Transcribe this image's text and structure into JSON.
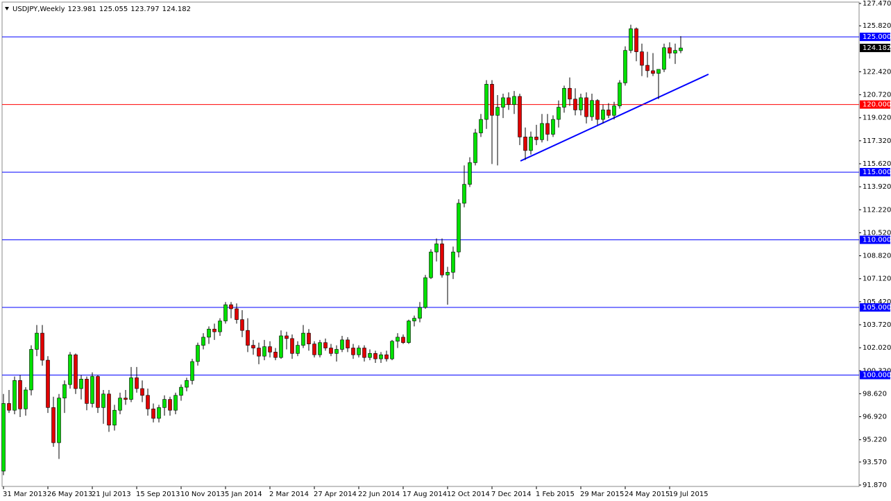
{
  "chart_data": {
    "type": "candlestick",
    "symbol": "USDJPY,Weekly",
    "ylim": [
      91.87,
      127.47
    ],
    "yticks": [
      {
        "value": 127.47,
        "label": "127.470"
      },
      {
        "value": 125.82,
        "label": "125.820"
      },
      {
        "value": 122.42,
        "label": "122.420"
      },
      {
        "value": 120.72,
        "label": "120.720"
      },
      {
        "value": 119.02,
        "label": "119.020"
      },
      {
        "value": 117.32,
        "label": "117.320"
      },
      {
        "value": 115.62,
        "label": "115.620"
      },
      {
        "value": 113.92,
        "label": "113.920"
      },
      {
        "value": 112.22,
        "label": "112.220"
      },
      {
        "value": 110.52,
        "label": "110.520"
      },
      {
        "value": 108.82,
        "label": "108.820"
      },
      {
        "value": 107.12,
        "label": "107.120"
      },
      {
        "value": 105.42,
        "label": "105.420"
      },
      {
        "value": 103.72,
        "label": "103.720"
      },
      {
        "value": 102.02,
        "label": "102.020"
      },
      {
        "value": 100.32,
        "label": "100.320"
      },
      {
        "value": 98.62,
        "label": "98.620"
      },
      {
        "value": 96.92,
        "label": "96.920"
      },
      {
        "value": 95.22,
        "label": "95.220"
      },
      {
        "value": 93.57,
        "label": "93.570"
      },
      {
        "value": 91.87,
        "label": "91.870"
      }
    ],
    "levels": [
      {
        "value": 125,
        "label": "125.000",
        "color": "#0000ff"
      },
      {
        "value": 120,
        "label": "120.000",
        "color": "#ff0000"
      },
      {
        "value": 115,
        "label": "115.000",
        "color": "#0000ff"
      },
      {
        "value": 110,
        "label": "110.000",
        "color": "#0000ff"
      },
      {
        "value": 105,
        "label": "105.000",
        "color": "#0000ff"
      },
      {
        "value": 100,
        "label": "100.000",
        "color": "#0000ff"
      }
    ],
    "up_color": "#00e000",
    "down_color": "#e00000",
    "wick_color": "#000000",
    "categories": [
      "31 Mar 2013",
      null,
      null,
      null,
      null,
      null,
      null,
      null,
      "26 May 2013",
      null,
      null,
      null,
      null,
      null,
      null,
      null,
      "21 Jul 2013",
      null,
      null,
      null,
      null,
      null,
      null,
      null,
      "15 Sep 2013",
      null,
      null,
      null,
      null,
      null,
      null,
      null,
      "10 Nov 2013",
      null,
      null,
      null,
      null,
      null,
      null,
      null,
      "5 Jan 2014",
      null,
      null,
      null,
      null,
      null,
      null,
      null,
      "2 Mar 2014",
      null,
      null,
      null,
      null,
      null,
      null,
      null,
      "27 Apr 2014",
      null,
      null,
      null,
      null,
      null,
      null,
      null,
      "22 Jun 2014",
      null,
      null,
      null,
      null,
      null,
      null,
      null,
      "17 Aug 2014",
      null,
      null,
      null,
      null,
      null,
      null,
      null,
      "12 Oct 2014",
      null,
      null,
      null,
      null,
      null,
      null,
      null,
      "7 Dec 2014",
      null,
      null,
      null,
      null,
      null,
      null,
      null,
      "1 Feb 2015",
      null,
      null,
      null,
      null,
      null,
      null,
      null,
      "29 Mar 2015",
      null,
      null,
      null,
      null,
      null,
      null,
      null,
      "24 May 2015",
      null,
      null,
      null,
      null,
      null,
      null,
      null,
      "19 Jul 2015",
      null,
      null
    ],
    "open": [
      92.9,
      97.9,
      97.4,
      99.6,
      97.5,
      98.9,
      101.9,
      103.1,
      101.1,
      97.6,
      95.0,
      98.3,
      99.3,
      101.5,
      99.0,
      99.7,
      97.9,
      99.9,
      97.6,
      98.6,
      96.3,
      97.4,
      98.3,
      98.2,
      99.8,
      99.0,
      98.5,
      97.5,
      96.8,
      97.6,
      98.2,
      97.4,
      98.5,
      99.1,
      99.6,
      101.0,
      102.2,
      102.8,
      103.4,
      103.2,
      104.0,
      105.2,
      104.9,
      104.1,
      103.3,
      102.2,
      102.0,
      101.4,
      102.1,
      101.7,
      101.3,
      102.9,
      102.7,
      101.6,
      102.2,
      103.1,
      102.3,
      101.5,
      102.4,
      102.0,
      101.6,
      101.9,
      102.6,
      102.0,
      101.5,
      102.0,
      101.3,
      101.6,
      101.2,
      101.5,
      101.2,
      102.5,
      102.8,
      102.4,
      104.0,
      104.2,
      105.0,
      107.2,
      109.1,
      109.7,
      107.4,
      107.6,
      109.1,
      112.7,
      114.1,
      115.7,
      117.9,
      118.9,
      121.5,
      119.2,
      119.8,
      120.5,
      120.0,
      120.6,
      117.6,
      116.6,
      117.6,
      117.4,
      118.6,
      117.8,
      118.9,
      119.8,
      121.2,
      120.4,
      119.6,
      120.5,
      119.1,
      120.3,
      118.9,
      119.6,
      119.2,
      119.9,
      121.6,
      124.0,
      125.6,
      123.9,
      122.9,
      122.5,
      122.3,
      122.6,
      124.2,
      123.8,
      123.981
    ],
    "high": [
      98.6,
      98.9,
      99.9,
      100.0,
      99.1,
      102.2,
      103.7,
      103.7,
      101.4,
      98.4,
      98.6,
      99.6,
      101.7,
      101.6,
      100.0,
      99.9,
      100.2,
      100.0,
      98.9,
      98.9,
      97.8,
      98.7,
      98.9,
      100.6,
      100.6,
      99.6,
      99.0,
      97.9,
      97.8,
      98.5,
      98.4,
      98.7,
      99.3,
      99.8,
      101.2,
      102.4,
      103.1,
      103.6,
      103.8,
      104.2,
      105.4,
      105.4,
      105.3,
      104.8,
      104.2,
      102.6,
      102.4,
      102.6,
      102.5,
      102.0,
      103.3,
      103.2,
      103.0,
      102.5,
      103.7,
      103.4,
      102.5,
      102.6,
      102.7,
      102.3,
      102.2,
      102.9,
      102.8,
      102.3,
      102.2,
      102.2,
      101.9,
      101.8,
      101.7,
      101.8,
      102.6,
      103.1,
      103.0,
      104.1,
      104.4,
      105.4,
      107.4,
      109.3,
      110.1,
      110.1,
      108.0,
      109.5,
      113.0,
      115.5,
      116.1,
      118.2,
      119.3,
      121.8,
      121.8,
      120.7,
      120.8,
      120.9,
      121.0,
      120.8,
      118.3,
      118.0,
      118.5,
      119.3,
      119.3,
      119.2,
      120.3,
      121.4,
      122.0,
      121.2,
      120.8,
      120.9,
      120.8,
      120.4,
      120.0,
      120.1,
      120.2,
      121.8,
      124.3,
      125.9,
      125.7,
      124.5,
      123.9,
      123.8,
      122.6,
      124.5,
      124.6,
      124.5,
      125.055
    ],
    "low": [
      92.6,
      97.2,
      97.1,
      96.9,
      97.0,
      98.5,
      101.4,
      100.7,
      97.2,
      94.7,
      93.8,
      97.2,
      99.0,
      98.6,
      98.2,
      97.4,
      97.6,
      97.2,
      96.4,
      95.8,
      95.9,
      97.1,
      97.8,
      98.0,
      98.7,
      98.0,
      97.0,
      96.5,
      96.5,
      97.0,
      97.0,
      97.1,
      98.1,
      98.8,
      99.3,
      100.7,
      101.9,
      102.3,
      102.6,
      102.9,
      103.8,
      104.2,
      103.8,
      102.8,
      101.7,
      101.5,
      100.8,
      101.1,
      101.3,
      101.1,
      101.2,
      101.9,
      101.2,
      101.4,
      102.0,
      101.8,
      101.3,
      101.3,
      101.8,
      101.4,
      101.0,
      101.7,
      101.7,
      101.2,
      101.3,
      101.0,
      101.1,
      100.9,
      100.9,
      101.0,
      101.1,
      102.0,
      102.3,
      102.3,
      103.6,
      103.9,
      104.9,
      107.1,
      108.4,
      107.2,
      105.2,
      107.1,
      108.7,
      112.4,
      113.9,
      115.5,
      117.6,
      118.2,
      115.6,
      115.5,
      119.0,
      119.6,
      119.3,
      117.0,
      115.9,
      116.3,
      117.0,
      117.2,
      117.3,
      117.6,
      118.3,
      119.4,
      119.9,
      119.2,
      119.2,
      118.6,
      118.8,
      118.5,
      118.6,
      119.0,
      118.9,
      119.7,
      121.4,
      123.8,
      123.2,
      122.1,
      122.0,
      122.1,
      120.4,
      122.4,
      123.4,
      123.0,
      123.797
    ],
    "close": [
      97.9,
      97.4,
      99.6,
      97.5,
      98.9,
      101.9,
      103.1,
      101.1,
      97.6,
      95.0,
      98.3,
      99.3,
      101.5,
      99.0,
      99.7,
      97.9,
      99.9,
      97.6,
      98.6,
      96.3,
      97.4,
      98.3,
      98.2,
      99.8,
      99.0,
      98.5,
      97.5,
      96.8,
      97.6,
      98.2,
      97.4,
      98.5,
      99.1,
      99.6,
      101.0,
      102.2,
      102.8,
      103.4,
      103.2,
      104.0,
      105.2,
      104.9,
      104.1,
      103.3,
      102.2,
      102.0,
      101.4,
      102.1,
      101.7,
      101.3,
      102.9,
      102.7,
      101.6,
      102.2,
      103.1,
      102.3,
      101.5,
      102.4,
      102.0,
      101.6,
      101.9,
      102.6,
      102.0,
      101.5,
      102.0,
      101.3,
      101.6,
      101.2,
      101.5,
      101.2,
      102.5,
      102.8,
      102.4,
      104.0,
      104.2,
      105.0,
      107.2,
      109.1,
      109.7,
      107.4,
      107.6,
      109.1,
      112.7,
      114.1,
      115.7,
      117.9,
      118.9,
      121.5,
      119.2,
      119.8,
      120.5,
      120.0,
      120.6,
      117.6,
      116.6,
      117.6,
      117.4,
      118.6,
      117.8,
      118.9,
      119.8,
      121.2,
      120.4,
      119.6,
      120.5,
      119.1,
      120.3,
      118.9,
      119.6,
      119.2,
      119.9,
      121.6,
      124.0,
      125.6,
      123.9,
      122.9,
      122.5,
      122.3,
      122.6,
      124.2,
      123.8,
      124.0,
      124.182
    ]
  }
}
